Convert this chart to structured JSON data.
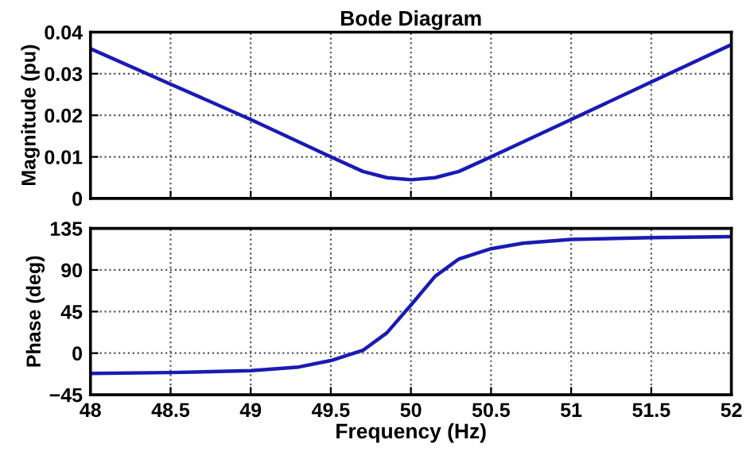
{
  "chart_data": [
    {
      "type": "line",
      "title": "Bode Diagram",
      "ylabel": "Magnitude (pu)",
      "xlim": [
        48,
        52
      ],
      "xticks": [
        48,
        48.5,
        49,
        49.5,
        50,
        50.5,
        51,
        51.5,
        52
      ],
      "ylim": [
        0,
        0.04
      ],
      "yticks": [
        0,
        0.01,
        0.02,
        0.03,
        0.04
      ],
      "tick_labels": "y",
      "grid": true,
      "series": [
        {
          "color": "#1a1ab4",
          "x": [
            48,
            48.5,
            49,
            49.5,
            49.7,
            49.85,
            50,
            50.15,
            50.3,
            50.5,
            51,
            51.5,
            52
          ],
          "values": [
            0.036,
            0.0275,
            0.019,
            0.01,
            0.0065,
            0.005,
            0.0045,
            0.005,
            0.0065,
            0.01,
            0.019,
            0.028,
            0.037
          ]
        }
      ]
    },
    {
      "type": "line",
      "xlabel": "Frequency (Hz)",
      "ylabel": "Phase (deg)",
      "xlim": [
        48,
        52
      ],
      "xticks": [
        48,
        48.5,
        49,
        49.5,
        50,
        50.5,
        51,
        51.5,
        52
      ],
      "ylim": [
        -45,
        135
      ],
      "yticks": [
        {
          "value": -45,
          "label": "−45"
        },
        0,
        45,
        90,
        135
      ],
      "grid": true,
      "series": [
        {
          "color": "#1a1ab4",
          "x": [
            48,
            48.5,
            49,
            49.3,
            49.5,
            49.7,
            49.85,
            50,
            50.15,
            50.3,
            50.5,
            50.7,
            51,
            51.5,
            52
          ],
          "values": [
            -22,
            -21,
            -19,
            -15,
            -8,
            3,
            22,
            52,
            83,
            102,
            113,
            119,
            123,
            125,
            126
          ]
        }
      ]
    }
  ]
}
